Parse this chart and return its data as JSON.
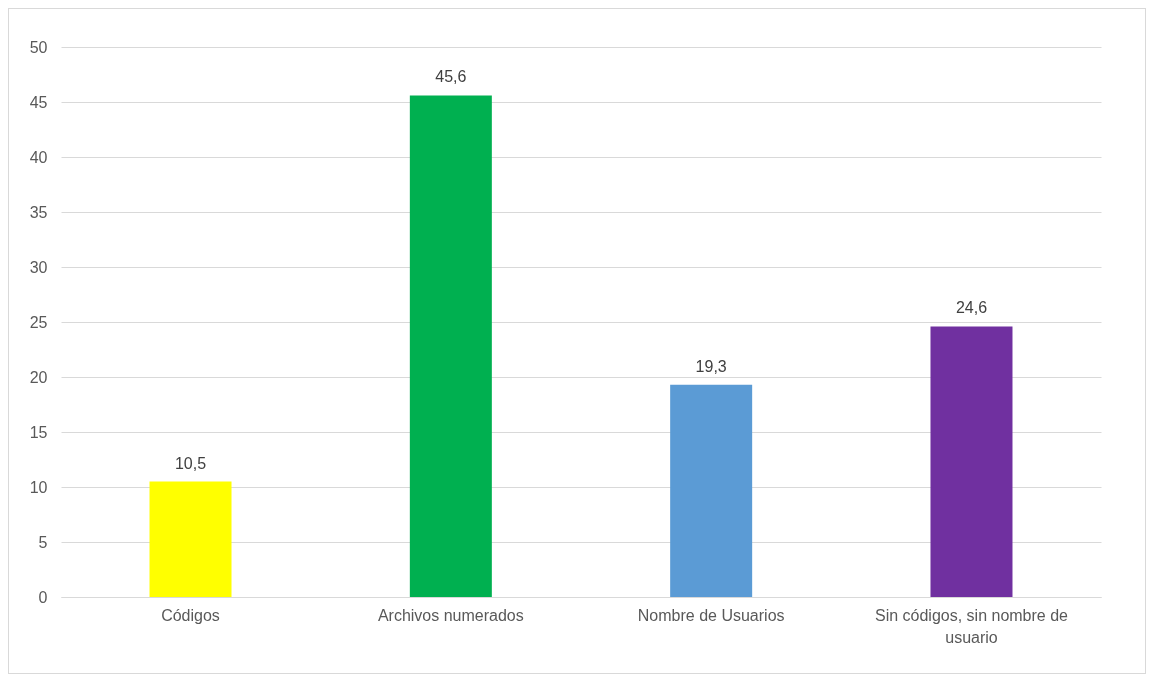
{
  "chart_data": {
    "type": "bar",
    "categories": [
      "Códigos",
      "Archivos numerados",
      "Nombre de Usuarios",
      "Sin códigos, sin nombre de usuario"
    ],
    "values": [
      10.5,
      45.6,
      19.3,
      24.6
    ],
    "colors": [
      "#ffff00",
      "#00b050",
      "#5b9bd5",
      "#7030a0"
    ],
    "value_labels": [
      "10,5",
      "45,6",
      "19,3",
      "24,6"
    ],
    "ylim": [
      0,
      50
    ],
    "yticks": [
      0,
      5,
      10,
      15,
      20,
      25,
      30,
      35,
      40,
      45,
      50
    ],
    "grid": "y",
    "legend": false
  }
}
